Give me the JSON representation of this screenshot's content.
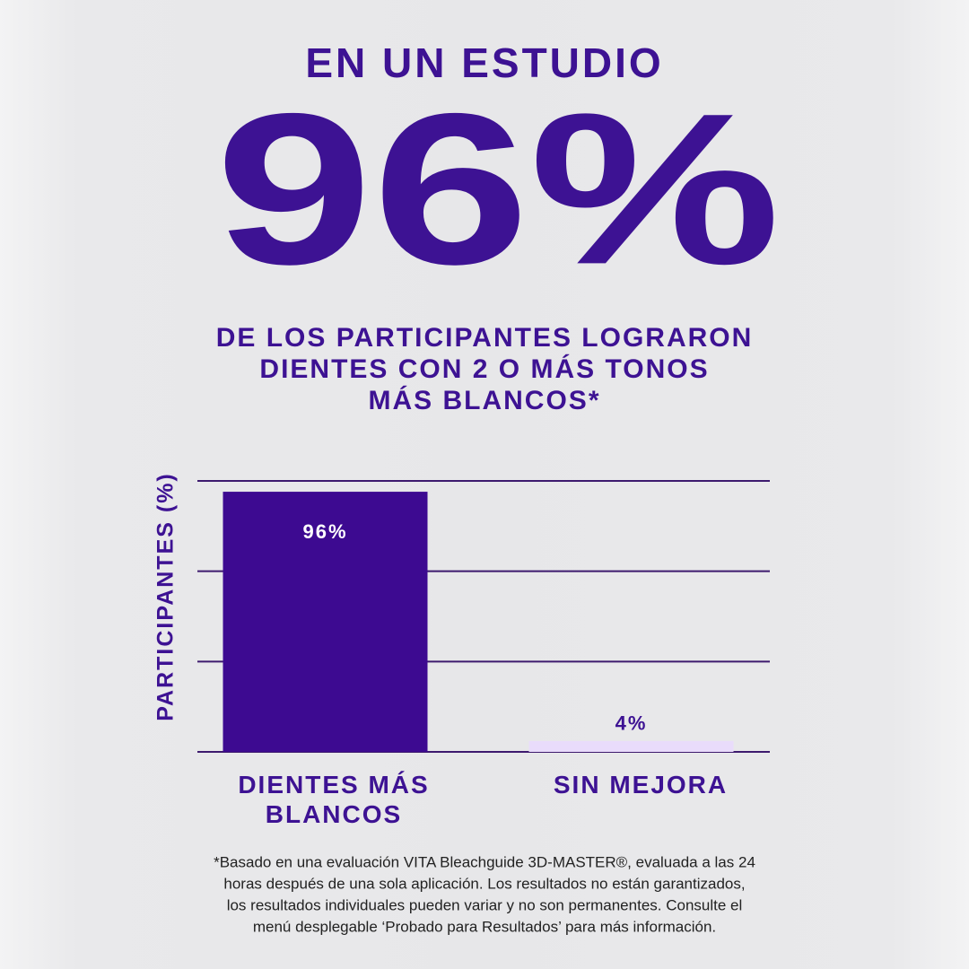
{
  "header": {
    "title": "EN UN ESTUDIO",
    "headline": "96%",
    "subtitle": [
      "DE LOS PARTICIPANTES LOGRARON",
      "DIENTES CON 2 O MÁS TONOS",
      "MÁS BLANCOS*"
    ]
  },
  "chart_data": {
    "type": "bar",
    "ylabel": "PARTICIPANTES (%)",
    "categories": [
      "DIENTES MÁS BLANCOS",
      "SIN MEJORA"
    ],
    "values": [
      96,
      4
    ],
    "value_labels": [
      "96%",
      "4%"
    ],
    "colors": [
      "#3d0a91",
      "#e9dcfb"
    ],
    "ylim": [
      0,
      100
    ],
    "yticks": [
      0,
      33.3,
      66.7,
      100
    ],
    "grid": true
  },
  "footnote": [
    "*Basado en una evaluación VITA Bleachguide 3D-MASTER®, evaluada a las 24",
    "horas después de una sola aplicación. Los resultados no están garantizados,",
    "los resultados individuales pueden variar y no son permanentes. Consulte el",
    "menú desplegable ‘Probado para Resultados’ para más información."
  ]
}
